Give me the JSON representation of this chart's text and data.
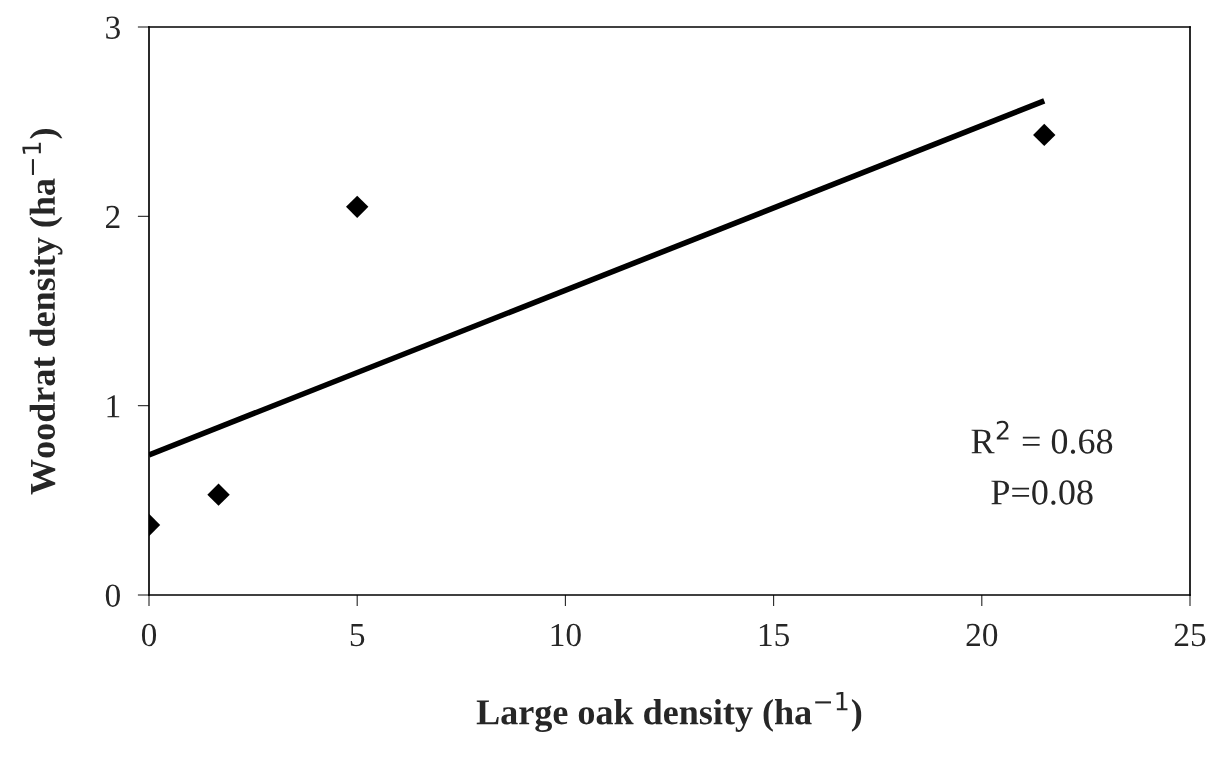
{
  "chart_data": {
    "type": "scatter",
    "xlabel": "Large oak density (ha$^{−1}$)",
    "ylabel": "Woodrat density (ha$^{−1}$)",
    "series": [
      {
        "color": "#000000",
        "marker": "diamond",
        "x": [
          0,
          1.67,
          5,
          21.5
        ],
        "values": [
          0.37,
          0.53,
          2.05,
          2.43
        ]
      },
      {
        "type": "line",
        "color": "#000000",
        "marker": "none",
        "line_style": "solid",
        "x": [
          0,
          21.5
        ],
        "values": [
          0.74,
          2.61
        ]
      }
    ],
    "xlim": [
      0,
      25
    ],
    "xticks": [
      0,
      5,
      10,
      15,
      20,
      25
    ],
    "ylim": [
      0,
      3
    ],
    "yticks": [
      0,
      1,
      2,
      3
    ],
    "grid": false,
    "legend": false,
    "annotations": [
      "R$^{2}$ = 0.68",
      "P=0.08"
    ]
  }
}
